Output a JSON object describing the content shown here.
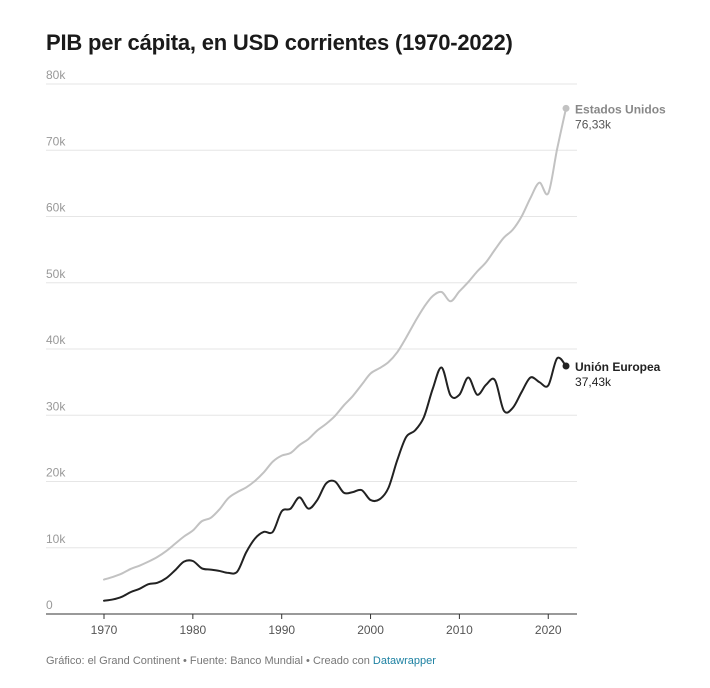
{
  "chart_data": {
    "type": "line",
    "title": "PIB per cápita, en USD corrientes (1970-2022)",
    "xlabel": "",
    "ylabel": "",
    "xlim": [
      1963,
      2026
    ],
    "ylim": [
      0,
      80000
    ],
    "grid": true,
    "y_ticks": [
      0,
      10000,
      20000,
      30000,
      40000,
      50000,
      60000,
      70000,
      80000
    ],
    "y_tick_labels": [
      "0",
      "10k",
      "20k",
      "30k",
      "40k",
      "50k",
      "60k",
      "70k",
      "80k"
    ],
    "x_ticks": [
      1970,
      1980,
      1990,
      2000,
      2010,
      2020
    ],
    "x_tick_labels": [
      "1970",
      "1980",
      "1990",
      "2000",
      "2010",
      "2020"
    ],
    "x": [
      1970,
      1971,
      1972,
      1973,
      1974,
      1975,
      1976,
      1977,
      1978,
      1979,
      1980,
      1981,
      1982,
      1983,
      1984,
      1985,
      1986,
      1987,
      1988,
      1989,
      1990,
      1991,
      1992,
      1993,
      1994,
      1995,
      1996,
      1997,
      1998,
      1999,
      2000,
      2001,
      2002,
      2003,
      2004,
      2005,
      2006,
      2007,
      2008,
      2009,
      2010,
      2011,
      2012,
      2013,
      2014,
      2015,
      2016,
      2017,
      2018,
      2019,
      2020,
      2021,
      2022
    ],
    "series": [
      {
        "name": "Estados Unidos",
        "color": "#c2c2c2",
        "end_label": "76,33k",
        "values": [
          5200,
          5600,
          6100,
          6800,
          7300,
          7900,
          8600,
          9500,
          10600,
          11700,
          12600,
          14000,
          14500,
          15800,
          17500,
          18400,
          19100,
          20100,
          21400,
          23000,
          23900,
          24300,
          25500,
          26400,
          27700,
          28700,
          29900,
          31500,
          32900,
          34600,
          36300,
          37100,
          38000,
          39500,
          41700,
          44100,
          46300,
          48000,
          48600,
          47200,
          48700,
          50100,
          51700,
          53100,
          55000,
          56800,
          58000,
          60000,
          62800,
          65100,
          63500,
          70200,
          76330
        ]
      },
      {
        "name": "Unión Europea",
        "color": "#222222",
        "end_label": "37,43k",
        "values": [
          2000,
          2200,
          2600,
          3300,
          3800,
          4500,
          4700,
          5400,
          6600,
          7900,
          8000,
          6900,
          6700,
          6500,
          6200,
          6400,
          9300,
          11400,
          12400,
          12400,
          15500,
          15900,
          17600,
          15900,
          17200,
          19700,
          20000,
          18300,
          18400,
          18700,
          17200,
          17300,
          19000,
          23200,
          26700,
          27700,
          29700,
          34000,
          37200,
          33000,
          33100,
          35700,
          33100,
          34600,
          35300,
          30700,
          31100,
          33500,
          35700,
          35000,
          34500,
          38600,
          37430
        ]
      }
    ],
    "footer": {
      "prefix": "Gráfico: el Grand Continent • Fuente: Banco Mundial • Creado con ",
      "link": "Datawrapper"
    }
  }
}
